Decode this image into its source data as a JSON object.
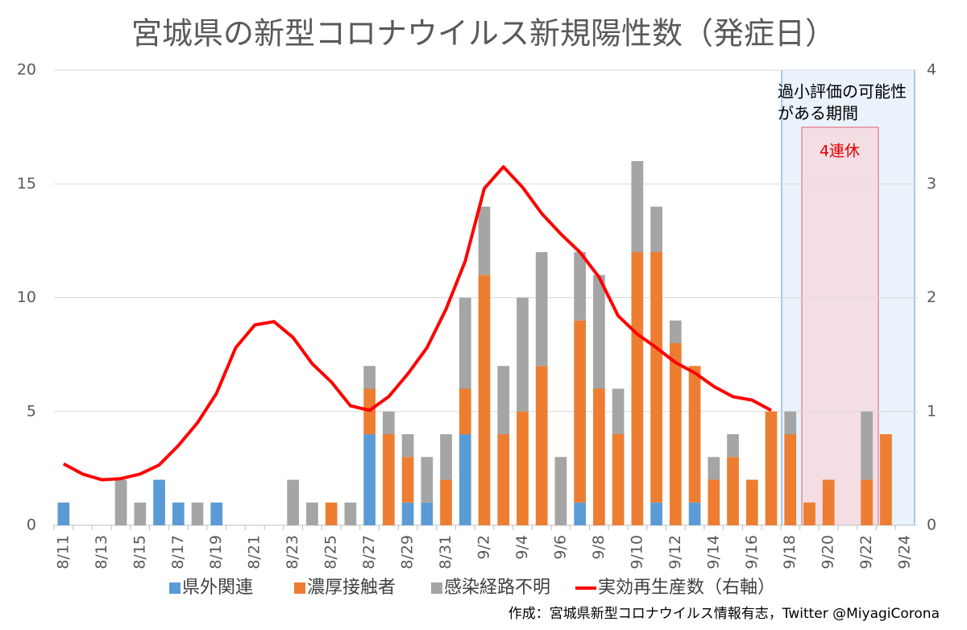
{
  "chart_data": {
    "type": "bar",
    "title": "宮城県の新型コロナウイルス新規陽性数（発症日）",
    "categories": [
      "8/11",
      null,
      "8/13",
      null,
      "8/15",
      null,
      "8/17",
      null,
      "8/19",
      null,
      "8/21",
      null,
      "8/23",
      null,
      "8/25",
      null,
      "8/27",
      null,
      "8/29",
      null,
      "8/31",
      null,
      "9/2",
      null,
      "9/4",
      null,
      "9/6",
      null,
      "9/8",
      null,
      "9/10",
      null,
      "9/12",
      null,
      "9/14",
      null,
      "9/16",
      null,
      "9/18",
      null,
      "9/20",
      null,
      "9/22",
      null,
      "9/24"
    ],
    "series": [
      {
        "name": "県外関連",
        "color": "#5b9bd5",
        "values": [
          1,
          0,
          0,
          0,
          0,
          2,
          1,
          0,
          1,
          0,
          0,
          0,
          0,
          0,
          0,
          0,
          4,
          0,
          1,
          1,
          0,
          4,
          0,
          0,
          0,
          0,
          0,
          1,
          0,
          0,
          0,
          1,
          0,
          1,
          0,
          0,
          0,
          0,
          0,
          0,
          0,
          0,
          0,
          0,
          0
        ]
      },
      {
        "name": "濃厚接触者",
        "color": "#ed7d31",
        "values": [
          0,
          0,
          0,
          0,
          0,
          0,
          0,
          0,
          0,
          0,
          0,
          0,
          0,
          0,
          1,
          0,
          2,
          4,
          2,
          0,
          2,
          2,
          11,
          4,
          5,
          7,
          0,
          8,
          6,
          4,
          12,
          11,
          8,
          6,
          2,
          3,
          2,
          5,
          4,
          1,
          2,
          0,
          2,
          4,
          0
        ]
      },
      {
        "name": "感染経路不明",
        "color": "#a5a5a5",
        "values": [
          0,
          0,
          0,
          2,
          1,
          0,
          0,
          1,
          0,
          0,
          0,
          0,
          2,
          1,
          0,
          1,
          1,
          1,
          1,
          2,
          2,
          4,
          3,
          3,
          5,
          5,
          3,
          3,
          5,
          2,
          4,
          2,
          1,
          0,
          1,
          1,
          0,
          0,
          1,
          0,
          0,
          0,
          3,
          0,
          0
        ]
      },
      {
        "name": "実効再生産数（右軸）",
        "color": "#ff0000",
        "type": "line",
        "axis": "y2",
        "values": [
          0.54,
          0.45,
          0.4,
          0.41,
          0.45,
          0.53,
          0.7,
          0.9,
          1.16,
          1.56,
          1.76,
          1.79,
          1.65,
          1.42,
          1.26,
          1.05,
          1.01,
          1.13,
          1.33,
          1.56,
          1.9,
          2.32,
          2.96,
          3.15,
          2.97,
          2.74,
          2.56,
          2.4,
          2.18,
          1.84,
          1.68,
          1.56,
          1.43,
          1.34,
          1.22,
          1.13,
          1.1,
          1.01,
          null,
          null,
          null,
          null,
          null,
          null,
          null
        ]
      }
    ],
    "stacked": true,
    "ylim": [
      0,
      20
    ],
    "yticks": [
      0,
      5,
      10,
      15,
      20
    ],
    "y2lim": [
      0,
      4
    ],
    "y2ticks": [
      0,
      1,
      2,
      3,
      4
    ],
    "grid": true,
    "legend": "bottom",
    "annotations": [
      "過小評価の可能性",
      "がある期間",
      "4連休"
    ],
    "footer": "作成：宮城県新型コロナウイルス情報有志，Twitter @MiyagiCorona"
  }
}
